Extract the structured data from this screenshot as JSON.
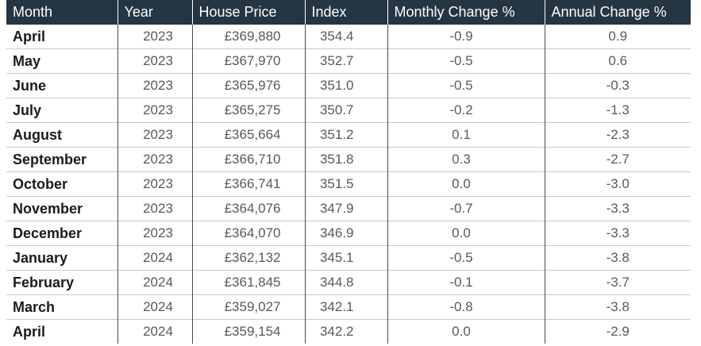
{
  "table": {
    "columns": [
      "Month",
      "Year",
      "House Price",
      "Index",
      "Monthly Change %",
      "Annual Change %"
    ],
    "rows": [
      {
        "month": "April",
        "year": "2023",
        "price": "£369,880",
        "index": "354.4",
        "monthly": "-0.9",
        "annual": "0.9"
      },
      {
        "month": "May",
        "year": "2023",
        "price": "£367,970",
        "index": "352.7",
        "monthly": "-0.5",
        "annual": "0.6"
      },
      {
        "month": "June",
        "year": "2023",
        "price": "£365,976",
        "index": "351.0",
        "monthly": "-0.5",
        "annual": "-0.3"
      },
      {
        "month": "July",
        "year": "2023",
        "price": "£365,275",
        "index": "350.7",
        "monthly": "-0.2",
        "annual": "-1.3"
      },
      {
        "month": "August",
        "year": "2023",
        "price": "£365,664",
        "index": "351.2",
        "monthly": "0.1",
        "annual": "-2.3"
      },
      {
        "month": "September",
        "year": "2023",
        "price": "£366,710",
        "index": "351.8",
        "monthly": "0.3",
        "annual": "-2.7"
      },
      {
        "month": "October",
        "year": "2023",
        "price": "£366,741",
        "index": "351.5",
        "monthly": "0.0",
        "annual": "-3.0"
      },
      {
        "month": "November",
        "year": "2023",
        "price": "£364,076",
        "index": "347.9",
        "monthly": "-0.7",
        "annual": "-3.3"
      },
      {
        "month": "December",
        "year": "2023",
        "price": "£364,070",
        "index": "346.9",
        "monthly": "0.0",
        "annual": "-3.3"
      },
      {
        "month": "January",
        "year": "2024",
        "price": "£362,132",
        "index": "345.1",
        "monthly": "-0.5",
        "annual": "-3.8"
      },
      {
        "month": "February",
        "year": "2024",
        "price": "£361,845",
        "index": "344.8",
        "monthly": "-0.1",
        "annual": "-3.7"
      },
      {
        "month": "March",
        "year": "2024",
        "price": "£359,027",
        "index": "342.1",
        "monthly": "-0.8",
        "annual": "-3.8"
      },
      {
        "month": "April",
        "year": "2024",
        "price": "£359,154",
        "index": "342.2",
        "monthly": "0.0",
        "annual": "-2.9"
      }
    ]
  }
}
